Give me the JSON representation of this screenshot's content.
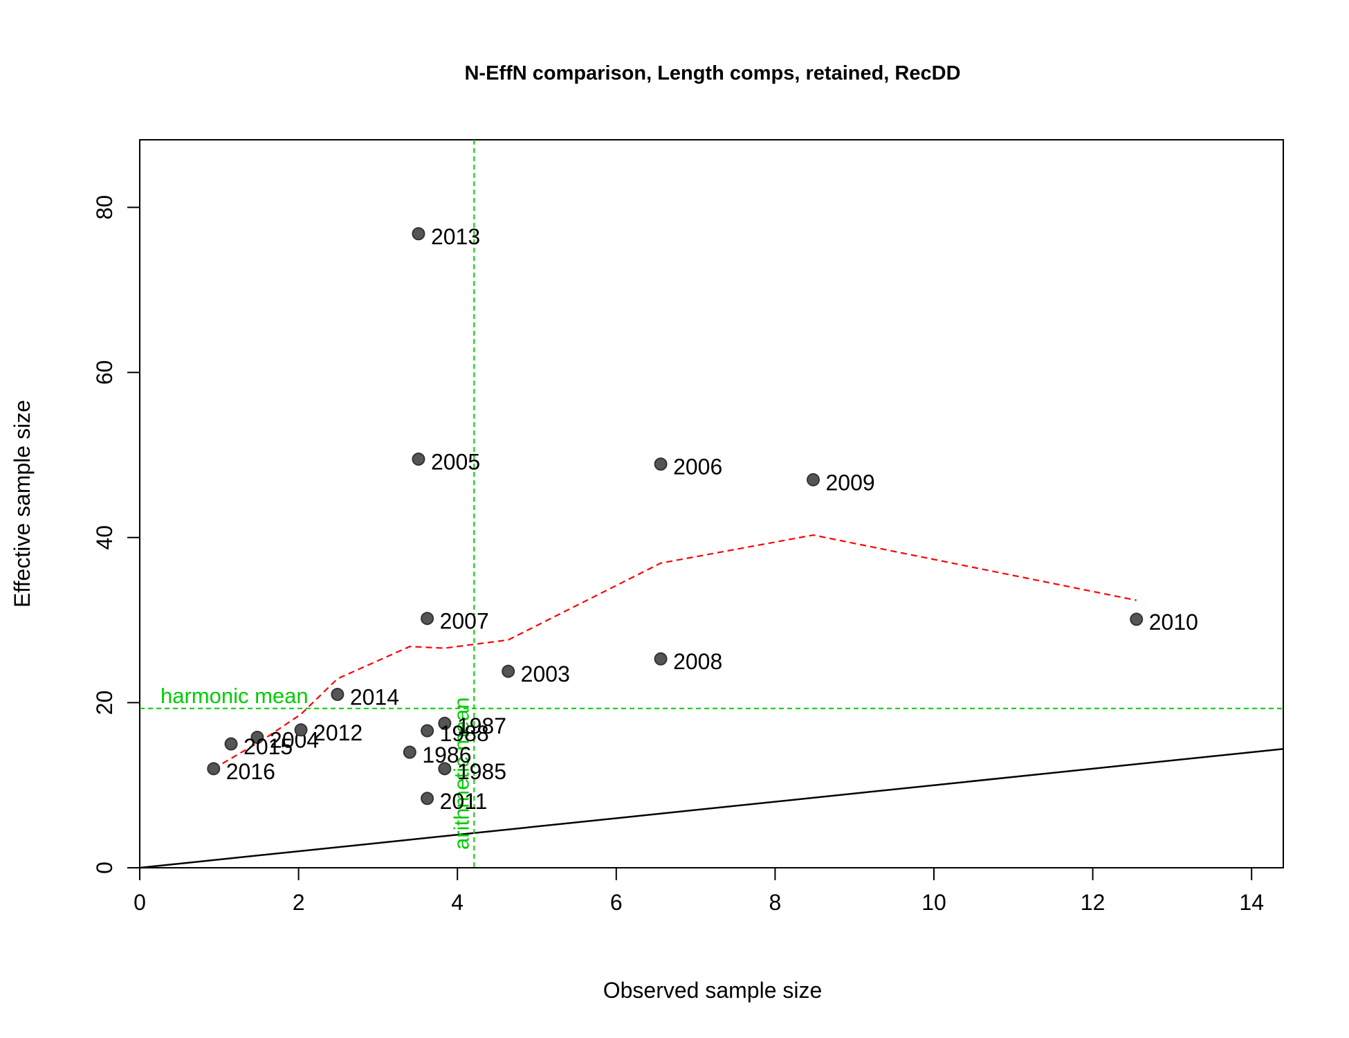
{
  "chart_data": {
    "type": "scatter",
    "title": "N-EffN comparison, Length comps, retained, RecDD",
    "xlabel": "Observed sample size",
    "ylabel": "Effective sample size",
    "xlim": [
      0,
      14.4
    ],
    "ylim": [
      0,
      88.2
    ],
    "xticks": [
      "0",
      "2",
      "4",
      "6",
      "8",
      "10",
      "12",
      "14"
    ],
    "yticks": [
      "0",
      "20",
      "40",
      "60",
      "80"
    ],
    "points": [
      {
        "label": "1985",
        "x": 3.84,
        "y": 12.0
      },
      {
        "label": "1986",
        "x": 3.4,
        "y": 14.0
      },
      {
        "label": "1987",
        "x": 3.84,
        "y": 17.5
      },
      {
        "label": "1988",
        "x": 3.62,
        "y": 16.6
      },
      {
        "label": "2003",
        "x": 4.64,
        "y": 23.8
      },
      {
        "label": "2004",
        "x": 1.48,
        "y": 15.8
      },
      {
        "label": "2005",
        "x": 3.51,
        "y": 49.5
      },
      {
        "label": "2006",
        "x": 6.56,
        "y": 48.9
      },
      {
        "label": "2007",
        "x": 3.62,
        "y": 30.2
      },
      {
        "label": "2008",
        "x": 6.56,
        "y": 25.3
      },
      {
        "label": "2009",
        "x": 8.48,
        "y": 47.0
      },
      {
        "label": "2010",
        "x": 12.55,
        "y": 30.1
      },
      {
        "label": "2011",
        "x": 3.62,
        "y": 8.4
      },
      {
        "label": "2012",
        "x": 2.03,
        "y": 16.7
      },
      {
        "label": "2013",
        "x": 3.51,
        "y": 76.8
      },
      {
        "label": "2014",
        "x": 2.49,
        "y": 21.0
      },
      {
        "label": "2015",
        "x": 1.15,
        "y": 15.0
      },
      {
        "label": "2016",
        "x": 0.93,
        "y": 12.0
      }
    ],
    "smoother": {
      "name": "",
      "color": "#ff0000",
      "points": [
        [
          0.93,
          12.0
        ],
        [
          1.55,
          15.5
        ],
        [
          2.03,
          18.6
        ],
        [
          2.49,
          22.9
        ],
        [
          3.4,
          26.8
        ],
        [
          3.84,
          26.6
        ],
        [
          4.64,
          27.6
        ],
        [
          6.56,
          36.9
        ],
        [
          8.48,
          40.3
        ],
        [
          12.55,
          32.4
        ]
      ]
    },
    "reference_line": {
      "slope": 1,
      "intercept": 0,
      "color": "#000000"
    },
    "harmonic_mean": {
      "label": "harmonic mean",
      "value": 19.3,
      "color": "#00cc00"
    },
    "arithmetic_mean": {
      "label": "arithmetic mean",
      "value": 4.21,
      "color": "#00cc00"
    },
    "point_color": "#555555",
    "grid": false,
    "legend": "none"
  }
}
